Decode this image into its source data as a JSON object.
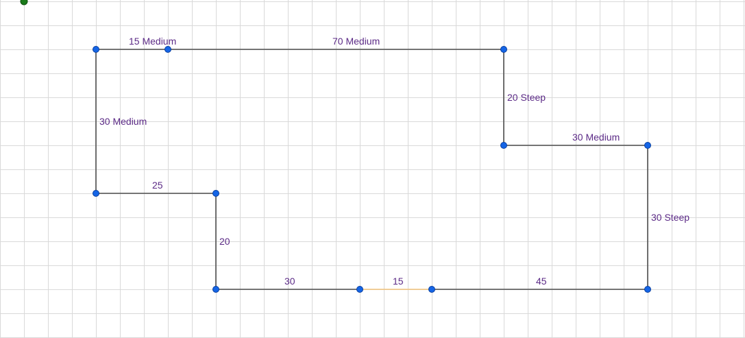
{
  "colors": {
    "grid": "#d9d9d9",
    "edge": "#4d4d4d",
    "edge_highlight": "#f2c27a",
    "vertex": "#1565e6",
    "vertex_stroke": "#0a3f9e",
    "label": "#5b2a86",
    "origin": "#1a7a1a"
  },
  "diagram": {
    "edges": [
      {
        "id": "e1",
        "label": "15 Medium"
      },
      {
        "id": "e2",
        "label": "70 Medium"
      },
      {
        "id": "e3",
        "label": "20 Steep"
      },
      {
        "id": "e4",
        "label": "30 Medium"
      },
      {
        "id": "e5",
        "label": "30 Steep"
      },
      {
        "id": "e6",
        "label": "45"
      },
      {
        "id": "e7",
        "label": "15",
        "highlight": true
      },
      {
        "id": "e8",
        "label": "30"
      },
      {
        "id": "e9",
        "label": "20"
      },
      {
        "id": "e10",
        "label": "25"
      },
      {
        "id": "e11",
        "label": "30 Medium"
      }
    ]
  }
}
